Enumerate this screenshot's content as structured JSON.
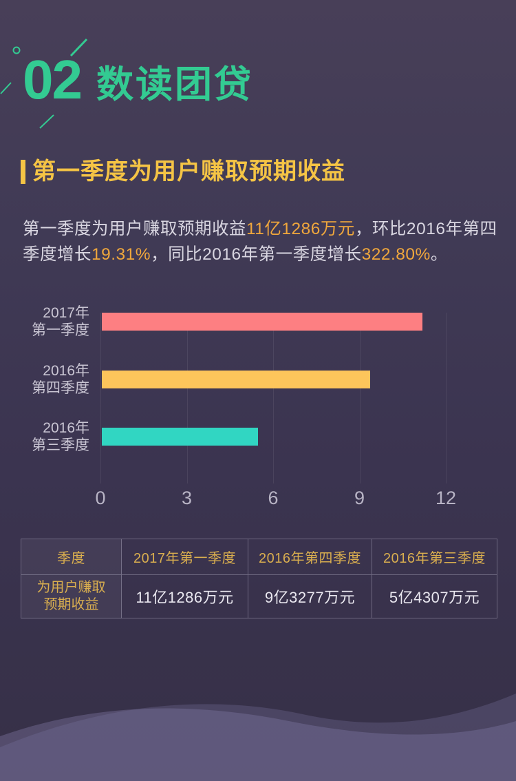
{
  "page": {
    "section_number": "02",
    "section_title": "数读团贷"
  },
  "article": {
    "heading": "第一季度为用户赚取预期收益",
    "paragraph_segments": [
      {
        "text": "第一季度为用户赚取预期收益",
        "highlight": false
      },
      {
        "text": "11亿1286万元",
        "highlight": true
      },
      {
        "text": "，环比2016年第四季度增长",
        "highlight": false
      },
      {
        "text": "19.31%",
        "highlight": true
      },
      {
        "text": "，同比2016年第一季度增长",
        "highlight": false
      },
      {
        "text": "322.80%",
        "highlight": true
      },
      {
        "text": "。",
        "highlight": false
      }
    ]
  },
  "chart_data": {
    "type": "bar",
    "orientation": "horizontal",
    "title": "",
    "xlabel": "",
    "ylabel": "",
    "categories": [
      "2017年第一季度",
      "2016年第四季度",
      "2016年第三季度"
    ],
    "category_label_lines": [
      [
        "2017年",
        "第一季度"
      ],
      [
        "2016年",
        "第四季度"
      ],
      [
        "2016年",
        "第三季度"
      ]
    ],
    "values": [
      11.1286,
      9.3277,
      5.4307
    ],
    "unit": "亿元",
    "bar_colors": [
      "#fd7f82",
      "#fdc55b",
      "#31d6c2"
    ],
    "xlim": [
      0,
      12
    ],
    "xticks": [
      "0",
      "3",
      "6",
      "9",
      "12"
    ],
    "grid": true,
    "legend": false
  },
  "table": {
    "header_row": [
      "季度",
      "2017年第一季度",
      "2016年第四季度",
      "2016年第三季度"
    ],
    "data_row": {
      "label": "为用户赚取预期收益",
      "label_lines": [
        "为用户赚取",
        "预期收益"
      ],
      "values": [
        "11亿1286万元",
        "9亿3277万元",
        "5亿4307万元"
      ]
    }
  },
  "colors": {
    "accent_green": "#33cb92",
    "heading_yellow": "#f5c445",
    "highlight_orange": "#f0a73c",
    "body_text": "#d9d6e1",
    "table_gold": "#d9ae4f",
    "background_top": "#483f58",
    "background_bottom": "#363047",
    "wave_purple": "#7c74a0"
  }
}
